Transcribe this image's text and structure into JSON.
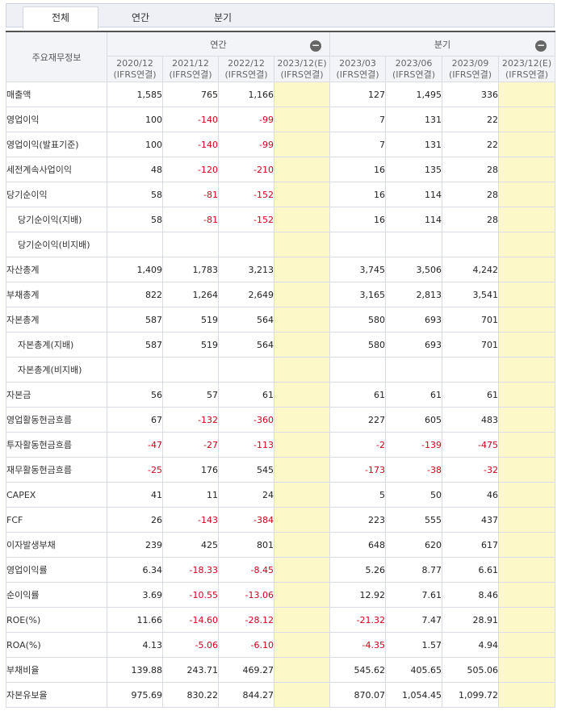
{
  "tabs": [
    "전체",
    "연간",
    "분기"
  ],
  "header": {
    "corner": "주요재무정보",
    "annual": "연간",
    "quarter": "분기",
    "columns": [
      {
        "period": "2020/12",
        "basis": "(IFRS연결)"
      },
      {
        "period": "2021/12",
        "basis": "(IFRS연결)"
      },
      {
        "period": "2022/12",
        "basis": "(IFRS연결)"
      },
      {
        "period": "2023/12(E)",
        "basis": "(IFRS연결)"
      },
      {
        "period": "2023/03",
        "basis": "(IFRS연결)"
      },
      {
        "period": "2023/06",
        "basis": "(IFRS연결)"
      },
      {
        "period": "2023/09",
        "basis": "(IFRS연결)"
      },
      {
        "period": "2023/12(E)",
        "basis": "(IFRS연결)"
      }
    ]
  },
  "rows": [
    {
      "name": "매출액",
      "values": [
        "1,585",
        "765",
        "1,166",
        "",
        "127",
        "1,495",
        "336",
        ""
      ]
    },
    {
      "name": "영업이익",
      "values": [
        "100",
        "-140",
        "-99",
        "",
        "7",
        "131",
        "22",
        ""
      ]
    },
    {
      "name": "영업이익(발표기준)",
      "values": [
        "100",
        "-140",
        "-99",
        "",
        "7",
        "131",
        "22",
        ""
      ]
    },
    {
      "name": "세전계속사업이익",
      "values": [
        "48",
        "-120",
        "-210",
        "",
        "16",
        "135",
        "28",
        ""
      ]
    },
    {
      "name": "당기순이익",
      "values": [
        "58",
        "-81",
        "-152",
        "",
        "16",
        "114",
        "28",
        ""
      ]
    },
    {
      "name": "당기순이익(지배)",
      "sub": true,
      "values": [
        "58",
        "-81",
        "-152",
        "",
        "16",
        "114",
        "28",
        ""
      ]
    },
    {
      "name": "당기순이익(비지배)",
      "sub": true,
      "values": [
        "",
        "",
        "",
        "",
        "",
        "",
        "",
        ""
      ]
    },
    {
      "name": "자산총계",
      "values": [
        "1,409",
        "1,783",
        "3,213",
        "",
        "3,745",
        "3,506",
        "4,242",
        ""
      ]
    },
    {
      "name": "부채총계",
      "values": [
        "822",
        "1,264",
        "2,649",
        "",
        "3,165",
        "2,813",
        "3,541",
        ""
      ]
    },
    {
      "name": "자본총계",
      "values": [
        "587",
        "519",
        "564",
        "",
        "580",
        "693",
        "701",
        ""
      ]
    },
    {
      "name": "자본총계(지배)",
      "sub": true,
      "values": [
        "587",
        "519",
        "564",
        "",
        "580",
        "693",
        "701",
        ""
      ]
    },
    {
      "name": "자본총계(비지배)",
      "sub": true,
      "values": [
        "",
        "",
        "",
        "",
        "",
        "",
        "",
        ""
      ]
    },
    {
      "name": "자본금",
      "values": [
        "56",
        "57",
        "61",
        "",
        "61",
        "61",
        "61",
        ""
      ]
    },
    {
      "name": "영업활동현금흐름",
      "values": [
        "67",
        "-132",
        "-360",
        "",
        "227",
        "605",
        "483",
        ""
      ]
    },
    {
      "name": "투자활동현금흐름",
      "values": [
        "-47",
        "-27",
        "-113",
        "",
        "-2",
        "-139",
        "-475",
        ""
      ]
    },
    {
      "name": "재무활동현금흐름",
      "values": [
        "-25",
        "176",
        "545",
        "",
        "-173",
        "-38",
        "-32",
        ""
      ]
    },
    {
      "name": "CAPEX",
      "values": [
        "41",
        "11",
        "24",
        "",
        "5",
        "50",
        "46",
        ""
      ]
    },
    {
      "name": "FCF",
      "values": [
        "26",
        "-143",
        "-384",
        "",
        "223",
        "555",
        "437",
        ""
      ]
    },
    {
      "name": "이자발생부채",
      "values": [
        "239",
        "425",
        "801",
        "",
        "648",
        "620",
        "617",
        ""
      ]
    },
    {
      "name": "영업이익률",
      "values": [
        "6.34",
        "-18.33",
        "-8.45",
        "",
        "5.26",
        "8.77",
        "6.61",
        ""
      ]
    },
    {
      "name": "순이익률",
      "values": [
        "3.69",
        "-10.55",
        "-13.06",
        "",
        "12.92",
        "7.61",
        "8.46",
        ""
      ]
    },
    {
      "name": "ROE(%)",
      "values": [
        "11.66",
        "-14.60",
        "-28.12",
        "",
        "-21.32",
        "7.47",
        "28.91",
        ""
      ]
    },
    {
      "name": "ROA(%)",
      "values": [
        "4.13",
        "-5.06",
        "-6.10",
        "",
        "-4.35",
        "1.57",
        "4.94",
        ""
      ]
    },
    {
      "name": "부채비율",
      "values": [
        "139.88",
        "243.71",
        "469.27",
        "",
        "545.62",
        "405.65",
        "505.06",
        ""
      ]
    },
    {
      "name": "자본유보율",
      "values": [
        "975.69",
        "830.22",
        "844.27",
        "",
        "870.07",
        "1,054.45",
        "1,099.72",
        ""
      ]
    }
  ]
}
